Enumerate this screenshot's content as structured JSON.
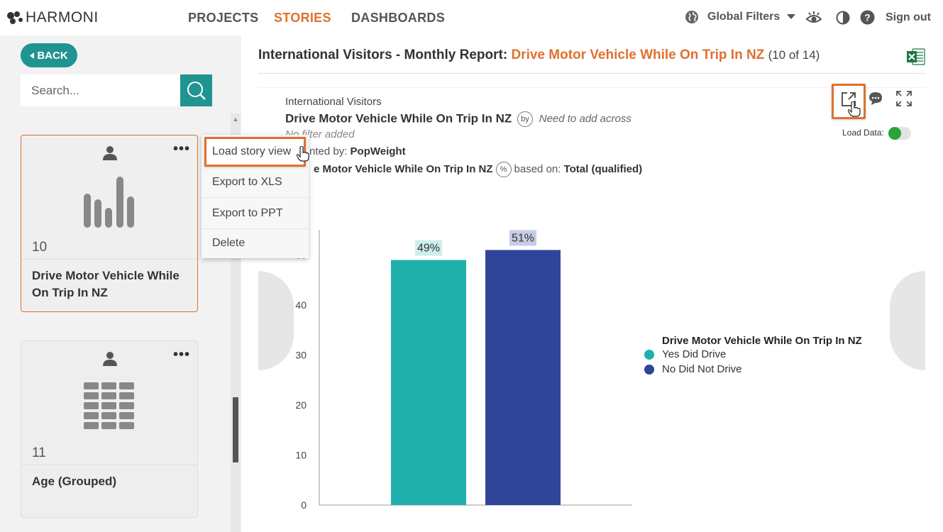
{
  "app": {
    "logo_text": "HARMONI"
  },
  "nav": {
    "projects": "PROJECTS",
    "stories": "STORIES",
    "dashboards": "DASHBOARDS",
    "global_filters": "Global Filters",
    "sign_out": "Sign out"
  },
  "sidebar": {
    "back_label": "BACK",
    "search_placeholder": "Search...",
    "cards": [
      {
        "number": "10",
        "title": "Drive Motor Vehicle While On Trip In NZ"
      },
      {
        "number": "11",
        "title": "Age (Grouped)"
      }
    ],
    "menu": [
      {
        "label": "Load story view"
      },
      {
        "label": "Export to XLS"
      },
      {
        "label": "Export to PPT"
      },
      {
        "label": "Delete"
      }
    ]
  },
  "main": {
    "title_prefix": "International Visitors - Monthly Report: ",
    "title_highlight": "Drive Motor Vehicle While On Trip In NZ",
    "title_count": "(10 of 14)",
    "source": "International Visitors",
    "question": "Drive Motor Vehicle While On Trip In NZ",
    "by_label": "by",
    "need_text": "Need to add across",
    "filter_text": "No filter added",
    "weight_prefix": "nted by: ",
    "weight_value": "PopWeight",
    "pct_question": "e Motor Vehicle While On Trip In NZ",
    "pct_symbol": "%",
    "pct_based": "based on: ",
    "pct_base_value": "Total (qualified)",
    "load_data_label": "Load Data:"
  },
  "colors": {
    "accent": "#e0702f",
    "teal": "#1f9490",
    "bar_yes": "#1fb0ac",
    "bar_no": "#2f4599"
  },
  "chart_data": {
    "type": "bar",
    "categories": [
      "Yes Did Drive",
      "No Did Not Drive"
    ],
    "values": [
      49,
      51
    ],
    "data_labels": [
      "49%",
      "51%"
    ],
    "yticks": [
      "0",
      "10",
      "20",
      "30",
      "40",
      "50"
    ],
    "ylim": [
      0,
      55
    ],
    "legend_title": "Drive Motor Vehicle While On Trip In NZ",
    "series_colors": [
      "#1fb0ac",
      "#2f4599"
    ],
    "label_bg": [
      "#cdeeed",
      "#c7cde6"
    ]
  }
}
